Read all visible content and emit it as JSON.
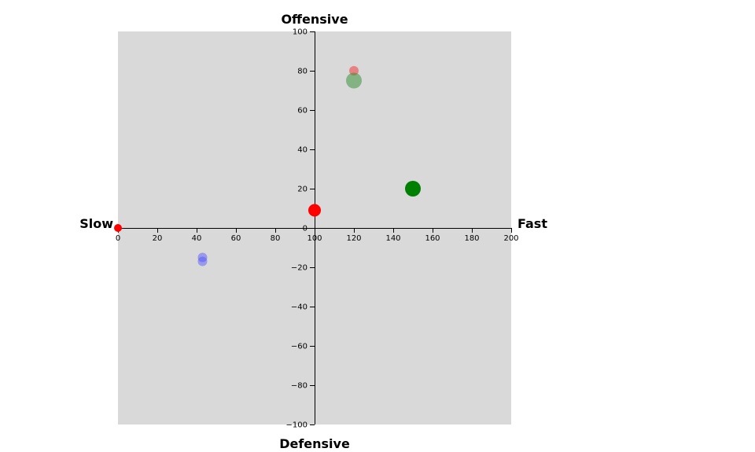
{
  "chart_data": {
    "type": "scatter",
    "title": "",
    "labels": {
      "top": "Offensive",
      "bottom": "Defensive",
      "left": "Slow",
      "right": "Fast"
    },
    "xlim": [
      0,
      200
    ],
    "ylim": [
      -100,
      100
    ],
    "xticks": [
      0,
      20,
      40,
      60,
      80,
      100,
      120,
      140,
      160,
      180,
      200
    ],
    "yticks": [
      100,
      80,
      60,
      40,
      20,
      0,
      -20,
      -40,
      -60,
      -80,
      -100
    ],
    "grid": false,
    "background": "#d9d9d9",
    "points": [
      {
        "x": 0,
        "y": 0,
        "size": 5,
        "color": "#ff0000",
        "opacity": 1.0
      },
      {
        "x": 100,
        "y": 9,
        "size": 8,
        "color": "#ff0000",
        "opacity": 1.0
      },
      {
        "x": 120,
        "y": 80,
        "size": 6,
        "color": "#ff0000",
        "opacity": 0.4
      },
      {
        "x": 120,
        "y": 75,
        "size": 10,
        "color": "#2e8b2e",
        "opacity": 0.5
      },
      {
        "x": 150,
        "y": 20,
        "size": 10,
        "color": "#008000",
        "opacity": 1.0
      },
      {
        "x": 43,
        "y": -15,
        "size": 6,
        "color": "#4d4dff",
        "opacity": 0.45
      },
      {
        "x": 43,
        "y": -17,
        "size": 6,
        "color": "#4d4dff",
        "opacity": 0.45
      }
    ]
  }
}
